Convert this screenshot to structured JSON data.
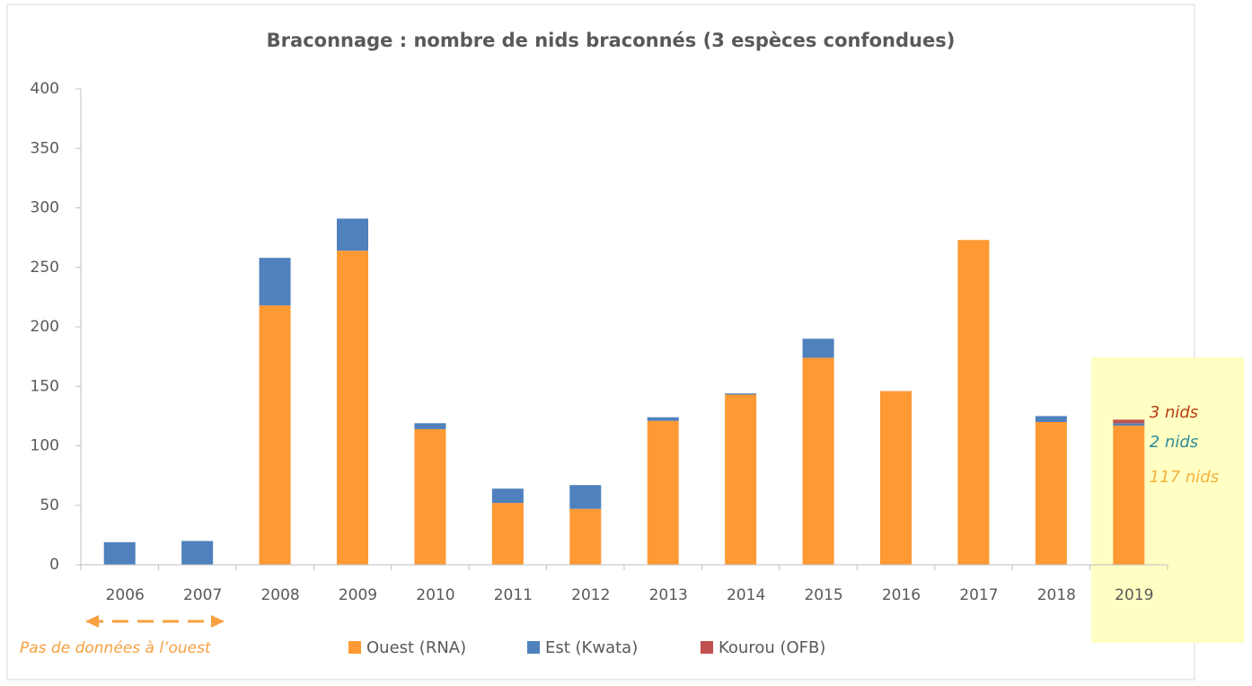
{
  "chart_data": {
    "type": "stacked_bar",
    "title": "Braconnage : nombre de nids braconnés (3 espèces confondues)",
    "categories": [
      "2006",
      "2007",
      "2008",
      "2009",
      "2010",
      "2011",
      "2012",
      "2013",
      "2014",
      "2015",
      "2016",
      "2017",
      "2018",
      "2019"
    ],
    "series": [
      {
        "name": "Ouest (RNA)",
        "color": "#ff9933",
        "label_color": "#f6b13a",
        "values": [
          0,
          0,
          218,
          264,
          114,
          52,
          47,
          121,
          143,
          174,
          146,
          273,
          120,
          117
        ],
        "value_labels": [
          null,
          null,
          null,
          null,
          null,
          null,
          null,
          null,
          null,
          null,
          null,
          null,
          null,
          "117 nids"
        ]
      },
      {
        "name": "Est (Kwata)",
        "color": "#4f81bd",
        "label_color": "#2e8b9a",
        "values": [
          19,
          20,
          40,
          27,
          5,
          12,
          20,
          3,
          1,
          16,
          0,
          0,
          5,
          2
        ],
        "value_labels": [
          null,
          null,
          null,
          null,
          null,
          null,
          null,
          null,
          null,
          null,
          null,
          null,
          null,
          "2 nids"
        ]
      },
      {
        "name": "Kourou (OFB)",
        "color": "#c0504d",
        "label_color": "#b83a10",
        "values": [
          0,
          0,
          0,
          0,
          0,
          0,
          0,
          0,
          0,
          0,
          0,
          0,
          0,
          3
        ],
        "value_labels": [
          null,
          null,
          null,
          null,
          null,
          null,
          null,
          null,
          null,
          null,
          null,
          null,
          null,
          "3 nids"
        ]
      }
    ],
    "ylim": [
      0,
      400
    ],
    "yticks": [
      0,
      50,
      100,
      150,
      200,
      250,
      300,
      350,
      400
    ],
    "grid": false,
    "annotation": "Pas de données à l’ouest"
  }
}
